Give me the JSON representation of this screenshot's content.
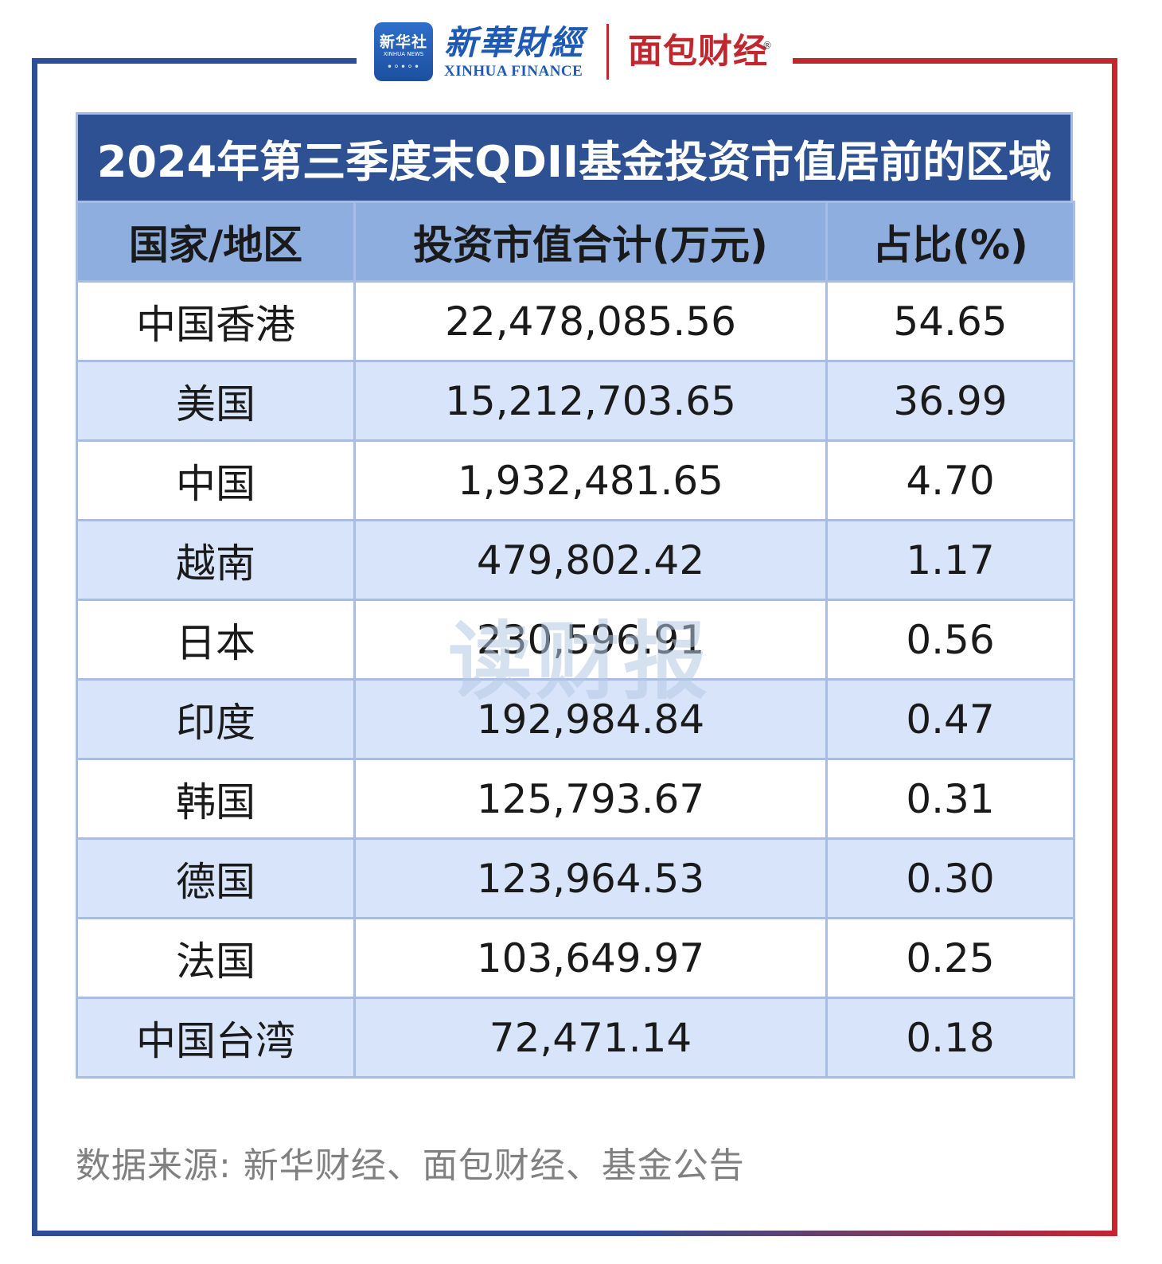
{
  "header": {
    "xinhua_badge_cn": "新华社",
    "xinhua_badge_en": "XINHUA NEWS",
    "xinhua_finance_cn": "新華財經",
    "xinhua_finance_en": "XINHUA FINANCE",
    "mianbao_logo": "面包财经",
    "registered_mark": "®"
  },
  "watermark": "读财报",
  "source_note": "数据来源: 新华财经、面包财经、基金公告",
  "colors": {
    "title_bg": "#2e5193",
    "header_bg": "#8faee0",
    "stripe_bg": "#d8e4f9",
    "border": "#a7bde3",
    "frame_blue": "#2d4e96",
    "frame_red": "#c2262f"
  },
  "chart_data": {
    "type": "table",
    "title": "2024年第三季度末QDII基金投资市值居前的区域",
    "columns": [
      "国家/地区",
      "投资市值合计(万元)",
      "占比(%)"
    ],
    "rows": [
      [
        "中国香港",
        "22,478,085.56",
        "54.65"
      ],
      [
        "美国",
        "15,212,703.65",
        "36.99"
      ],
      [
        "中国",
        "1,932,481.65",
        "4.70"
      ],
      [
        "越南",
        "479,802.42",
        "1.17"
      ],
      [
        "日本",
        "230,596.91",
        "0.56"
      ],
      [
        "印度",
        "192,984.84",
        "0.47"
      ],
      [
        "韩国",
        "125,793.67",
        "0.31"
      ],
      [
        "德国",
        "123,964.53",
        "0.30"
      ],
      [
        "法国",
        "103,649.97",
        "0.25"
      ],
      [
        "中国台湾",
        "72,471.14",
        "0.18"
      ]
    ]
  }
}
